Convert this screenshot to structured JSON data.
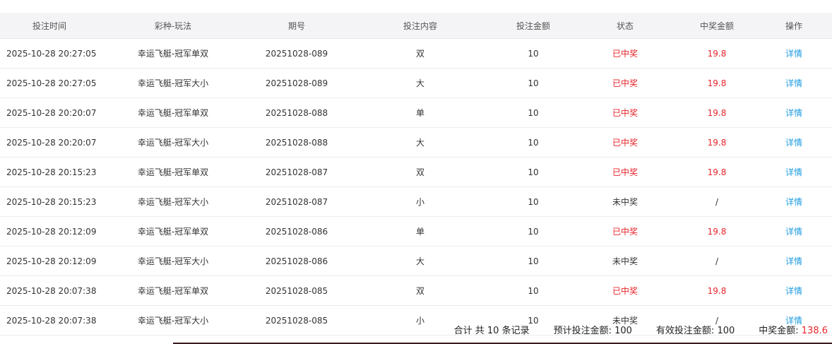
{
  "columns": [
    "投注时间",
    "彩种-玩法",
    "期号",
    "投注内容",
    "投注金额",
    "状态",
    "中奖金额",
    "操作"
  ],
  "rows": [
    {
      "time": "2025-10-28 20:27:05",
      "game": "幸运飞艇-冠军单双",
      "issue": "20251028-089",
      "content": "双",
      "amount": "10",
      "status": "已中奖",
      "win": "19.8",
      "action": "详情"
    },
    {
      "time": "2025-10-28 20:27:05",
      "game": "幸运飞艇-冠军大小",
      "issue": "20251028-089",
      "content": "大",
      "amount": "10",
      "status": "已中奖",
      "win": "19.8",
      "action": "详情"
    },
    {
      "time": "2025-10-28 20:20:07",
      "game": "幸运飞艇-冠军单双",
      "issue": "20251028-088",
      "content": "单",
      "amount": "10",
      "status": "已中奖",
      "win": "19.8",
      "action": "详情"
    },
    {
      "time": "2025-10-28 20:20:07",
      "game": "幸运飞艇-冠军大小",
      "issue": "20251028-088",
      "content": "大",
      "amount": "10",
      "status": "已中奖",
      "win": "19.8",
      "action": "详情"
    },
    {
      "time": "2025-10-28 20:15:23",
      "game": "幸运飞艇-冠军单双",
      "issue": "20251028-087",
      "content": "双",
      "amount": "10",
      "status": "已中奖",
      "win": "19.8",
      "action": "详情"
    },
    {
      "time": "2025-10-28 20:15:23",
      "game": "幸运飞艇-冠军大小",
      "issue": "20251028-087",
      "content": "小",
      "amount": "10",
      "status": "未中奖",
      "win": "/",
      "action": "详情"
    },
    {
      "time": "2025-10-28 20:12:09",
      "game": "幸运飞艇-冠军单双",
      "issue": "20251028-086",
      "content": "单",
      "amount": "10",
      "status": "已中奖",
      "win": "19.8",
      "action": "详情"
    },
    {
      "time": "2025-10-28 20:12:09",
      "game": "幸运飞艇-冠军大小",
      "issue": "20251028-086",
      "content": "大",
      "amount": "10",
      "status": "未中奖",
      "win": "/",
      "action": "详情"
    },
    {
      "time": "2025-10-28 20:07:38",
      "game": "幸运飞艇-冠军单双",
      "issue": "20251028-085",
      "content": "双",
      "amount": "10",
      "status": "已中奖",
      "win": "19.8",
      "action": "详情"
    },
    {
      "time": "2025-10-28 20:07:38",
      "game": "幸运飞艇-冠军大小",
      "issue": "20251028-085",
      "content": "小",
      "amount": "10",
      "status": "未中奖",
      "win": "/",
      "action": "详情"
    }
  ],
  "footer": {
    "total": "合计 共 10 条记录",
    "expected_label": "预计投注金额: ",
    "expected": "100",
    "valid_label": "有效投注金额: ",
    "valid": "100",
    "win_label": "中奖金额: ",
    "win": "138.6"
  },
  "colors": {
    "win": "#e8242a",
    "link": "#1e9be0"
  }
}
